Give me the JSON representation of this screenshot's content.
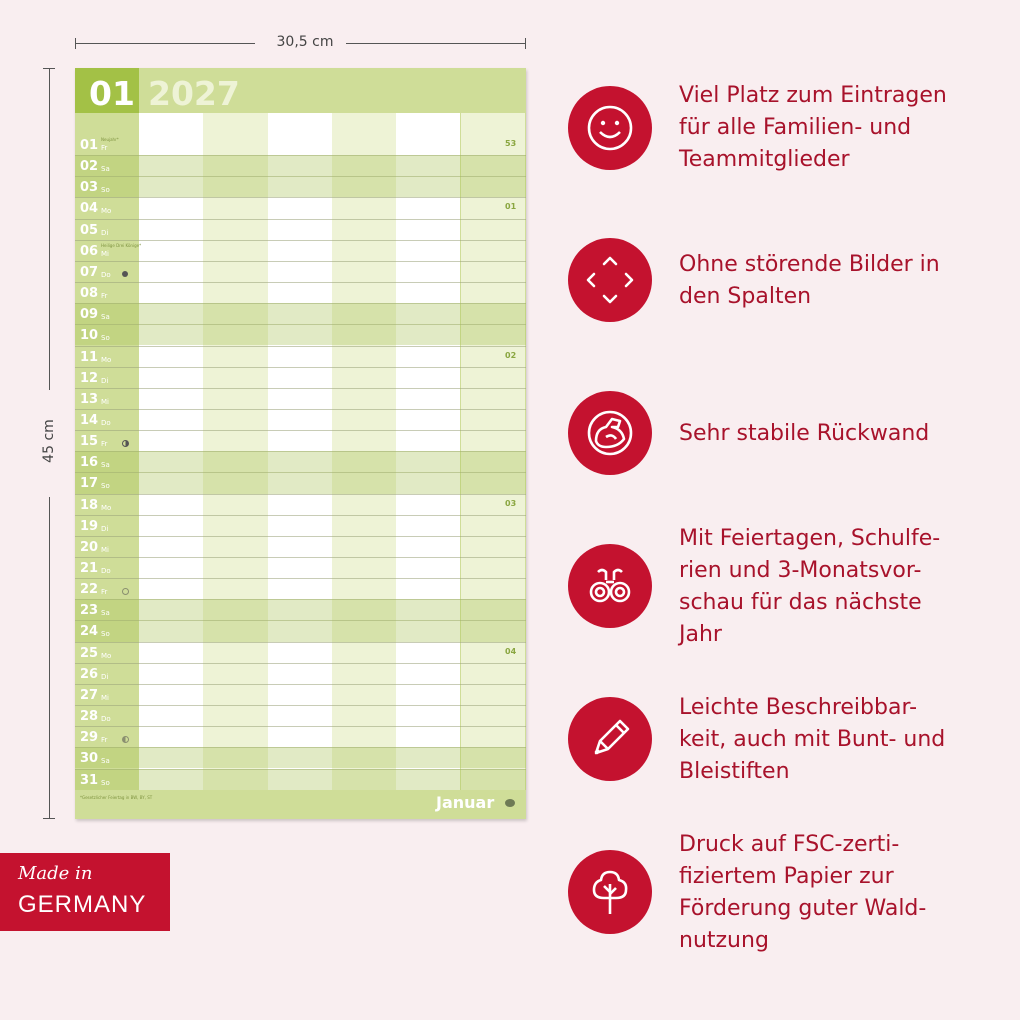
{
  "dimensions": {
    "width_label": "30,5 cm",
    "height_label": "45 cm"
  },
  "calendar": {
    "month_num": "01",
    "year": "2027",
    "footer_note": "*Gesetzlicher Feiertag in BW, BY, ST",
    "footer_month": "Januar",
    "days": [
      {
        "n": "01",
        "d": "Fr",
        "h": "Neujahr*",
        "wk": "53"
      },
      {
        "n": "02",
        "d": "Sa"
      },
      {
        "n": "03",
        "d": "So"
      },
      {
        "n": "04",
        "d": "Mo",
        "wk": "01"
      },
      {
        "n": "05",
        "d": "Di"
      },
      {
        "n": "06",
        "d": "Mi",
        "h": "Heilige Drei Könige*"
      },
      {
        "n": "07",
        "d": "Do"
      },
      {
        "n": "08",
        "d": "Fr"
      },
      {
        "n": "09",
        "d": "Sa"
      },
      {
        "n": "10",
        "d": "So"
      },
      {
        "n": "11",
        "d": "Mo",
        "wk": "02"
      },
      {
        "n": "12",
        "d": "Di"
      },
      {
        "n": "13",
        "d": "Mi"
      },
      {
        "n": "14",
        "d": "Do"
      },
      {
        "n": "15",
        "d": "Fr"
      },
      {
        "n": "16",
        "d": "Sa"
      },
      {
        "n": "17",
        "d": "So"
      },
      {
        "n": "18",
        "d": "Mo",
        "wk": "03"
      },
      {
        "n": "19",
        "d": "Di"
      },
      {
        "n": "20",
        "d": "Mi"
      },
      {
        "n": "21",
        "d": "Do"
      },
      {
        "n": "22",
        "d": "Fr"
      },
      {
        "n": "23",
        "d": "Sa"
      },
      {
        "n": "24",
        "d": "So"
      },
      {
        "n": "25",
        "d": "Mo",
        "wk": "04"
      },
      {
        "n": "26",
        "d": "Di"
      },
      {
        "n": "27",
        "d": "Mi"
      },
      {
        "n": "28",
        "d": "Do"
      },
      {
        "n": "29",
        "d": "Fr"
      },
      {
        "n": "30",
        "d": "Sa"
      },
      {
        "n": "31",
        "d": "So"
      }
    ],
    "moon_phases": [
      {
        "day": "07",
        "phase": "new-moon"
      },
      {
        "day": "15",
        "phase": "first-quarter"
      },
      {
        "day": "22",
        "phase": "full-moon"
      },
      {
        "day": "29",
        "phase": "last-quarter"
      }
    ]
  },
  "badge": {
    "line1": "Made in",
    "line2": "GERMANY"
  },
  "features": [
    {
      "icon": "smiley-icon",
      "text": "Viel Platz zum Eintragen\nfür alle Familien- und\nTeammitglieder"
    },
    {
      "icon": "expand-arrows-icon",
      "text": "Ohne störende Bilder in\nden Spalten"
    },
    {
      "icon": "flexed-arm-icon",
      "text": "Sehr stabile Rückwand"
    },
    {
      "icon": "binoculars-icon",
      "text": "Mit Feiertagen, Schulfe-\nrien und 3-Monatsvor-\nschau für das nächste\nJahr"
    },
    {
      "icon": "pencil-icon",
      "text": "Leichte Beschreibbar-\nkeit, auch mit Bunt- und\nBleistiften"
    },
    {
      "icon": "tree-icon",
      "text": "Druck auf FSC-zerti-\nfiziertem Papier zur\nFörderung guter Wald-\nnutzung"
    }
  ],
  "colors": {
    "accent": "#c4122f",
    "calendar_green": "#cfdd98",
    "month_green": "#a3c146"
  }
}
